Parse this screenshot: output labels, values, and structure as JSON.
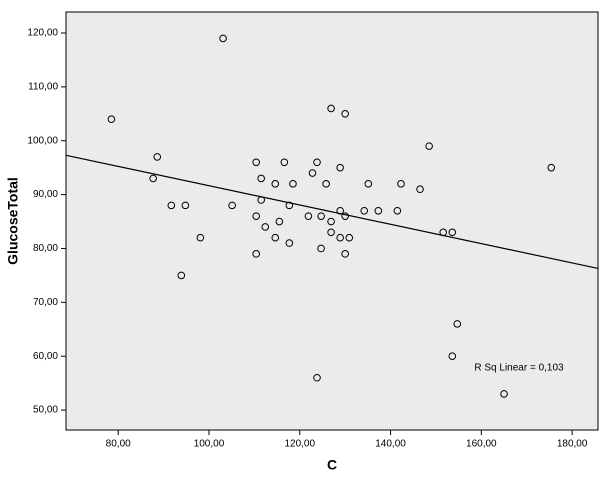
{
  "chart_data": {
    "type": "scatter",
    "x_label": "C",
    "y_label": "GlucoseTotal",
    "annotation": "R Sq Linear = 0,103",
    "xlim": [
      68.5,
      185.7
    ],
    "ylim": [
      46.3,
      123.9
    ],
    "xticks": [
      {
        "value": 80,
        "label": "80,00"
      },
      {
        "value": 100,
        "label": "100,00"
      },
      {
        "value": 120,
        "label": "120,00"
      },
      {
        "value": 140,
        "label": "140,00"
      },
      {
        "value": 160,
        "label": "160,00"
      },
      {
        "value": 180,
        "label": "180,00"
      }
    ],
    "yticks": [
      {
        "value": 50,
        "label": "50,00"
      },
      {
        "value": 60,
        "label": "60,00"
      },
      {
        "value": 70,
        "label": "70,00"
      },
      {
        "value": 80,
        "label": "80,00"
      },
      {
        "value": 90,
        "label": "90,00"
      },
      {
        "value": 100,
        "label": "100,00"
      },
      {
        "value": 110,
        "label": "110,00"
      },
      {
        "value": 120,
        "label": "120,00"
      }
    ],
    "x": [
      78.5,
      87.7,
      88.6,
      91.7,
      94.8,
      93.9,
      98.1,
      103.1,
      105.1,
      110.4,
      111.5,
      111.5,
      110.4,
      110.4,
      112.4,
      114.6,
      115.5,
      114.6,
      116.6,
      117.7,
      118.5,
      117.7,
      121.9,
      122.8,
      123.8,
      124.7,
      124.7,
      123.8,
      125.8,
      126.9,
      126.9,
      126.9,
      128.9,
      128.9,
      128.9,
      130,
      130,
      130,
      130.9,
      134.2,
      135.1,
      137.3,
      141.5,
      142.3,
      146.5,
      148.5,
      151.6,
      153.6,
      154.7,
      153.6,
      165,
      175.4
    ],
    "values": [
      104,
      93,
      97,
      88,
      88,
      75,
      82,
      119,
      88,
      96,
      93,
      89,
      86,
      79,
      84,
      92,
      85,
      82,
      96,
      88,
      92,
      81,
      86,
      94,
      96,
      86,
      80,
      56,
      92,
      106,
      85,
      83,
      95,
      87,
      82,
      105,
      86,
      79,
      82,
      87,
      92,
      87,
      87,
      92,
      91,
      99,
      83,
      83,
      66,
      60,
      53,
      95
    ],
    "fit_line": {
      "x": [
        68.5,
        185.7
      ],
      "y": [
        97.3,
        76.3
      ]
    },
    "background": "#ebebeb",
    "marker_color": "#000000"
  }
}
